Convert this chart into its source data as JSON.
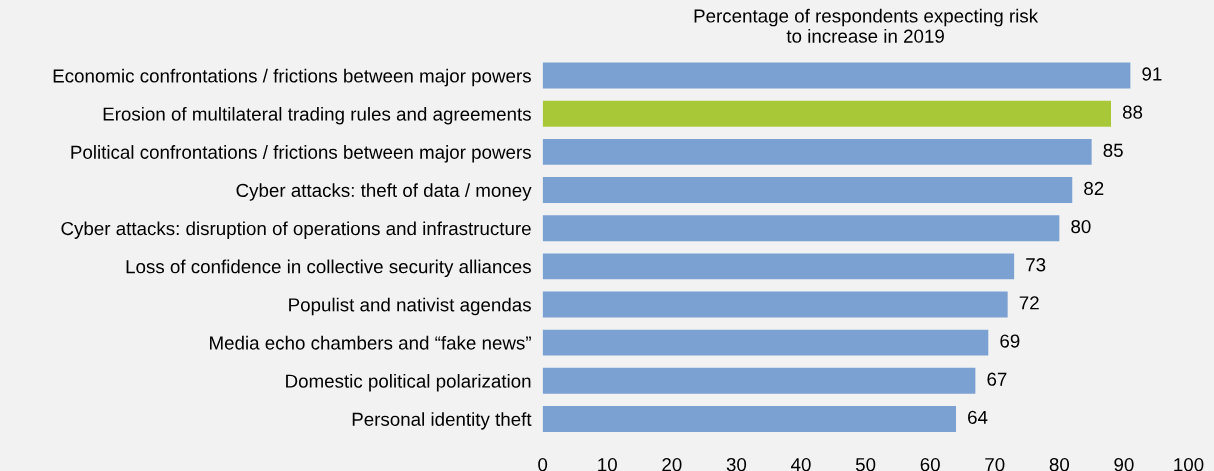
{
  "chart_data": {
    "type": "bar",
    "orientation": "horizontal",
    "title": "Percentage of respondents expecting risk\nto increase in 2019",
    "categories": [
      "Economic confrontations / frictions between major powers",
      "Erosion of multilateral trading rules and agreements",
      "Political confrontations / frictions between major powers",
      "Cyber attacks: theft of data / money",
      "Cyber attacks: disruption of operations and infrastructure",
      "Loss of confidence in collective security alliances",
      "Populist and nativist agendas",
      "Media echo chambers and “fake news”",
      "Domestic political polarization",
      "Personal identity theft"
    ],
    "values": [
      91,
      88,
      85,
      82,
      80,
      73,
      72,
      69,
      67,
      64
    ],
    "colors": [
      "#7ba1d3",
      "#a8c838",
      "#7ba1d3",
      "#7ba1d3",
      "#7ba1d3",
      "#7ba1d3",
      "#7ba1d3",
      "#7ba1d3",
      "#7ba1d3",
      "#7ba1d3"
    ],
    "xlim": [
      0,
      100
    ],
    "xticks": [
      0,
      10,
      20,
      30,
      40,
      50,
      60,
      70,
      80,
      90,
      100
    ],
    "data_labels": true,
    "grid": false,
    "legend": false
  }
}
